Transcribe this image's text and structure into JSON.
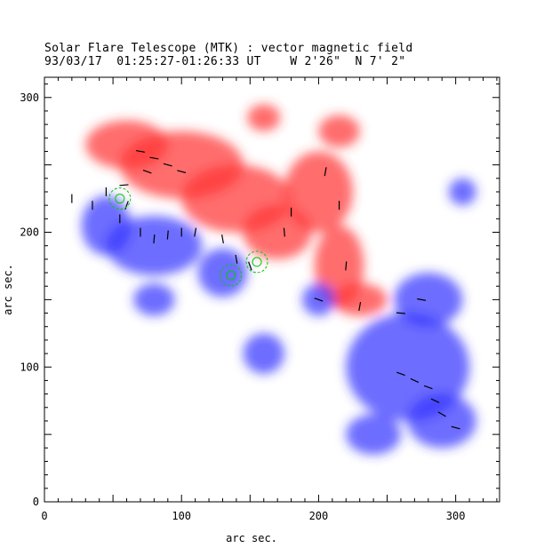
{
  "chart_data": {
    "type": "heatmap",
    "title": "Solar Flare Telescope (MTK) : vector magnetic field",
    "subtitle": "93/03/17  01:25:27-01:26:33 UT    W 2'26\"  N 7' 2\"",
    "xlabel": "arc sec.",
    "ylabel": "arc sec.",
    "xlim": [
      0,
      332
    ],
    "ylim": [
      0,
      315
    ],
    "xticks": [
      0,
      100,
      200,
      300
    ],
    "yticks": [
      0,
      100,
      200,
      300
    ],
    "colors": {
      "positive": "#ff3030",
      "negative": "#3030ff",
      "background": "#ffffff",
      "spots": "#00cc00",
      "vectors": "#000000"
    },
    "positive_regions": [
      [
        60,
        265,
        30,
        18
      ],
      [
        100,
        250,
        45,
        25
      ],
      [
        140,
        225,
        40,
        25
      ],
      [
        170,
        200,
        25,
        20
      ],
      [
        200,
        230,
        25,
        30
      ],
      [
        215,
        175,
        18,
        30
      ],
      [
        230,
        150,
        20,
        12
      ],
      [
        160,
        285,
        12,
        10
      ],
      [
        215,
        275,
        15,
        12
      ]
    ],
    "negative_regions": [
      [
        80,
        190,
        35,
        22
      ],
      [
        45,
        205,
        18,
        22
      ],
      [
        130,
        170,
        18,
        18
      ],
      [
        200,
        150,
        12,
        12
      ],
      [
        265,
        100,
        45,
        40
      ],
      [
        280,
        150,
        25,
        20
      ],
      [
        290,
        60,
        25,
        20
      ],
      [
        240,
        50,
        20,
        15
      ],
      [
        80,
        150,
        15,
        12
      ],
      [
        160,
        110,
        15,
        15
      ],
      [
        305,
        230,
        10,
        10
      ]
    ],
    "spots": [
      [
        55,
        225
      ],
      [
        136,
        168
      ],
      [
        155,
        178
      ]
    ],
    "vectors": [
      [
        70,
        260,
        -10
      ],
      [
        80,
        255,
        -10
      ],
      [
        90,
        250,
        -15
      ],
      [
        75,
        245,
        -20
      ],
      [
        100,
        245,
        -15
      ],
      [
        58,
        235,
        5
      ],
      [
        60,
        220,
        70
      ],
      [
        70,
        200,
        90
      ],
      [
        80,
        195,
        85
      ],
      [
        90,
        198,
        85
      ],
      [
        100,
        200,
        90
      ],
      [
        110,
        200,
        80
      ],
      [
        130,
        195,
        100
      ],
      [
        140,
        180,
        100
      ],
      [
        150,
        175,
        110
      ],
      [
        180,
        215,
        90
      ],
      [
        175,
        200,
        95
      ],
      [
        205,
        245,
        80
      ],
      [
        215,
        220,
        90
      ],
      [
        220,
        175,
        85
      ],
      [
        230,
        145,
        80
      ],
      [
        200,
        150,
        -20
      ],
      [
        260,
        95,
        -20
      ],
      [
        270,
        90,
        -25
      ],
      [
        280,
        85,
        -20
      ],
      [
        285,
        75,
        -25
      ],
      [
        290,
        65,
        -30
      ],
      [
        300,
        55,
        -15
      ],
      [
        275,
        150,
        -10
      ],
      [
        260,
        140,
        -5
      ],
      [
        20,
        225,
        90
      ],
      [
        35,
        220,
        90
      ],
      [
        45,
        230,
        90
      ],
      [
        55,
        210,
        90
      ]
    ]
  }
}
